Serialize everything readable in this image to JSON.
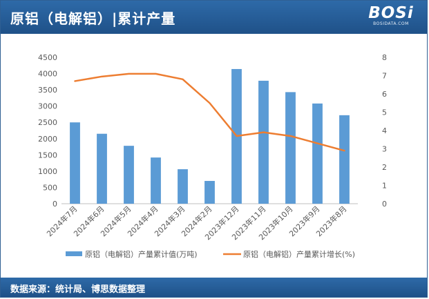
{
  "header": {
    "title": "原铝（电解铝）|累计产量",
    "logo_text": "BOSi",
    "logo_sub": "BOSIDATA.COM"
  },
  "footer": {
    "source": "数据来源：统计局、博思数据整理"
  },
  "colors": {
    "header_bg": "#2e6aa8",
    "bar": "#5b9bd5",
    "line": "#ed7d31",
    "axis_text": "#595959"
  },
  "chart_data": {
    "type": "bar",
    "categories": [
      "2024年7月",
      "2024年6月",
      "2024年5月",
      "2024年4月",
      "2024年3月",
      "2024年2月",
      "2023年12月",
      "2023年11月",
      "2023年10月",
      "2023年9月",
      "2023年8月"
    ],
    "series": [
      {
        "name": "原铝（电解铝）产量累计值(万吨)",
        "type": "bar",
        "axis": "left",
        "values": [
          2500,
          2150,
          1780,
          1420,
          1060,
          700,
          4140,
          3780,
          3430,
          3080,
          2720
        ]
      },
      {
        "name": "原铝（电解铝）产量累计增长(%)",
        "type": "line",
        "axis": "right",
        "values": [
          6.7,
          6.95,
          7.1,
          7.1,
          6.8,
          5.5,
          3.7,
          3.9,
          3.7,
          3.3,
          2.9
        ]
      }
    ],
    "y_left": {
      "min": 0,
      "max": 4500,
      "step": 500,
      "ticks": [
        "0",
        "500",
        "1000",
        "1500",
        "2000",
        "2500",
        "3000",
        "3500",
        "4000",
        "4500"
      ]
    },
    "y_right": {
      "min": 0,
      "max": 8,
      "step": 1,
      "ticks": [
        "0",
        "1",
        "2",
        "3",
        "4",
        "5",
        "6",
        "7",
        "8"
      ]
    },
    "grid": false,
    "legend_position": "bottom"
  }
}
